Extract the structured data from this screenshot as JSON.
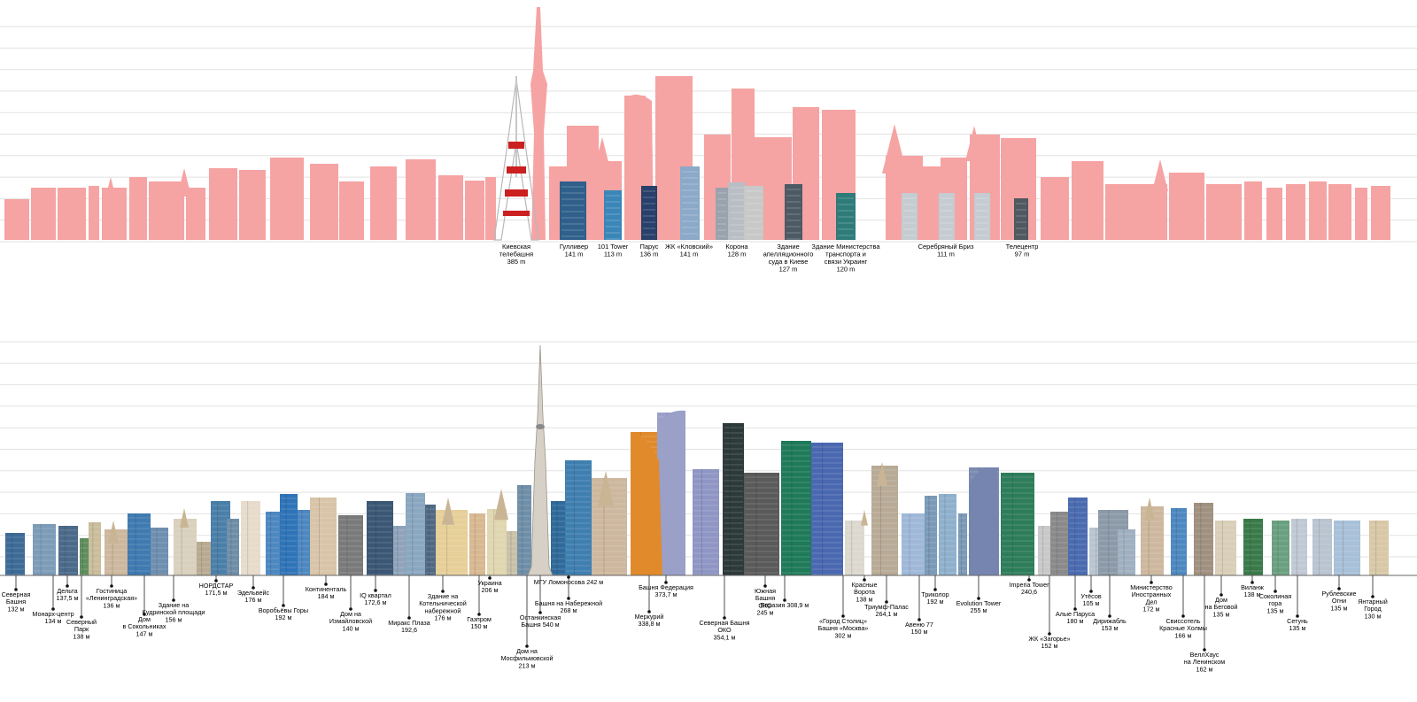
{
  "colors": {
    "silhouette": "#f6a3a3",
    "grid": "#e2e2e2",
    "label": "#000000",
    "tower_red": "#cc1f1f",
    "tower_white": "#f2f2f2",
    "glass_blue": "#2f5f8a",
    "glass_teal": "#2e7b7a",
    "glass_green": "#1f7a5a",
    "stone_beige": "#cdb79e",
    "orange": "#e08a2c",
    "lavender": "#9aa0c8",
    "dark_glass": "#2d3a3a"
  },
  "top_panel": {
    "labels": [
      {
        "name": "Киевская телебашня",
        "lines": [
          "Киевская",
          "телебашня",
          "385 m"
        ]
      },
      {
        "name": "Гулливер",
        "lines": [
          "Гулливер",
          "141 m"
        ]
      },
      {
        "name": "101 Tower",
        "lines": [
          "101 Tower",
          "113 m"
        ]
      },
      {
        "name": "Парус",
        "lines": [
          "Парус",
          "136 m"
        ]
      },
      {
        "name": "ЖК «Кловский»",
        "lines": [
          "ЖК «Кловский»",
          "141 m"
        ]
      },
      {
        "name": "Корона",
        "lines": [
          "Корона",
          "128 m"
        ]
      },
      {
        "name": "Здание апелляционного суда в Киеве",
        "lines": [
          "Здание",
          "апелляционного",
          "суда в Киеве",
          "127 m"
        ]
      },
      {
        "name": "Здание Министерства транспорта и связи Украинг",
        "lines": [
          "Здание Министерства",
          "транспорта и",
          "связи Украинг",
          "120 m"
        ]
      },
      {
        "name": "Серебряный Бриз",
        "lines": [
          "Серебряный Бриз",
          "111 m"
        ]
      },
      {
        "name": "Телецентр",
        "lines": [
          "Телецентр",
          "97 m"
        ]
      }
    ]
  },
  "bottom_panel": {
    "labels": [
      {
        "name": "Северная Башня",
        "lines": [
          "Северная",
          "Башня",
          "132 м"
        ]
      },
      {
        "name": "Монарх-центр",
        "lines": [
          "Монарх-центр",
          "134 м"
        ]
      },
      {
        "name": "Дельта",
        "lines": [
          "Дельта",
          "137,5 м"
        ]
      },
      {
        "name": "Северный Парк",
        "lines": [
          "Северный",
          "Парк",
          "138 м"
        ]
      },
      {
        "name": "Гостиница «Ленинградская»",
        "lines": [
          "Гостиница",
          "«Ленинградская»",
          "136 м"
        ]
      },
      {
        "name": "Дом в Сокольниках",
        "lines": [
          "Дом",
          "в Сокольниках",
          "147 м"
        ]
      },
      {
        "name": "Здание на Кудринской площади",
        "lines": [
          "Здание на",
          "Кудринской площади",
          "156 м"
        ]
      },
      {
        "name": "НОРДСТАР",
        "lines": [
          "НОРДСТАР",
          "171,5 м"
        ]
      },
      {
        "name": "Эдельвейс",
        "lines": [
          "Эдельвейс",
          "176 м"
        ]
      },
      {
        "name": "Воробьёвы Горы",
        "lines": [
          "Воробьёвы Горы",
          "192 м"
        ]
      },
      {
        "name": "Континенталь",
        "lines": [
          "Континенталь",
          "184 м"
        ]
      },
      {
        "name": "Дом на Измайловской",
        "lines": [
          "Дом на",
          "Измайловской",
          "140 м"
        ]
      },
      {
        "name": "IQ квартал",
        "lines": [
          "IQ квартал",
          "172,6 м"
        ]
      },
      {
        "name": "Миракс Плаза",
        "lines": [
          "Миракс Плаза",
          "192,6"
        ]
      },
      {
        "name": "Здание на Котельнической набережной",
        "lines": [
          "Здание на",
          "Котельнической",
          "набережной",
          "176 м"
        ]
      },
      {
        "name": "Газпром",
        "lines": [
          "Газпром",
          "150 м"
        ]
      },
      {
        "name": "Украина",
        "lines": [
          "Украина",
          "206 м"
        ]
      },
      {
        "name": "Дом на Мосфильмовской",
        "lines": [
          "Дом на",
          "Мосфильмовской",
          "213 м"
        ]
      },
      {
        "name": "Останкинская Башня",
        "lines": [
          "Останкинская",
          "Башня 540 м"
        ]
      },
      {
        "name": "МГУ Ломоносова",
        "lines": [
          "МГУ Ломоносова 242 м"
        ]
      },
      {
        "name": "Башня на Набережной",
        "lines": [
          "Башня на Набережной",
          "268 м"
        ]
      },
      {
        "name": "Меркурий",
        "lines": [
          "Меркурий",
          "338,8 м"
        ]
      },
      {
        "name": "Башня Федерация",
        "lines": [
          "Башня Федерация",
          "373,7 м"
        ]
      },
      {
        "name": "Северная Башня ОКО",
        "lines": [
          "Северная Башня",
          "ОКО",
          "354,1 м"
        ]
      },
      {
        "name": "Южная Башня ОКО",
        "lines": [
          "Южная",
          "Башня",
          "ОКО",
          "245 м"
        ]
      },
      {
        "name": "Евразия",
        "lines": [
          "Евразия  308,9 м"
        ]
      },
      {
        "name": "«Город Столиц» Башня «Москва»",
        "lines": [
          "«Город Столиц»",
          "Башня «Москва»",
          "302 м"
        ]
      },
      {
        "name": "Красные Ворота",
        "lines": [
          "Красные",
          "Ворота",
          "138 м"
        ]
      },
      {
        "name": "Триумф-Палас",
        "lines": [
          "Триумф-Палас",
          "264,1 м"
        ]
      },
      {
        "name": "Авеню 77",
        "lines": [
          "Авеню 77",
          "150 м"
        ]
      },
      {
        "name": "Триколор",
        "lines": [
          "Триколор",
          "192 м"
        ]
      },
      {
        "name": "Evolution Tower",
        "lines": [
          "Evolution Tower",
          "255 м"
        ]
      },
      {
        "name": "Imperia Tower",
        "lines": [
          "Imperia Tower",
          "240,6"
        ]
      },
      {
        "name": "ЖК «Загорье»",
        "lines": [
          "ЖК «Загорье»",
          "152 м"
        ]
      },
      {
        "name": "Алые Паруса",
        "lines": [
          "Алые Паруса",
          "180 м"
        ]
      },
      {
        "name": "Утёсов",
        "lines": [
          "Утёсов",
          "105 м"
        ]
      },
      {
        "name": "Дирижабль",
        "lines": [
          "Дирижабль",
          "153 м"
        ]
      },
      {
        "name": "Министерство Иностранных Дел",
        "lines": [
          "Министерство",
          "Иностранных",
          "Дел",
          "172 м"
        ]
      },
      {
        "name": "Свиссотель Красные Холмы",
        "lines": [
          "Свиссотель",
          "Красные Холмы",
          "166 м"
        ]
      },
      {
        "name": "ВеллХаус на Ленинском",
        "lines": [
          "ВеллХаус",
          "на Ленинском",
          "162 м"
        ]
      },
      {
        "name": "Дом на Беговой",
        "lines": [
          "Дом",
          "на Беговой",
          "135 м"
        ]
      },
      {
        "name": "Виланж",
        "lines": [
          "Виланж",
          "138 м"
        ]
      },
      {
        "name": "Соколиная гора",
        "lines": [
          "Соколиная",
          "гора",
          "135 м"
        ]
      },
      {
        "name": "Сетунь",
        "lines": [
          "Сетунь",
          "135 м"
        ]
      },
      {
        "name": "Рублевские Огни",
        "lines": [
          "Рублевские",
          "Огни",
          "135 м"
        ]
      },
      {
        "name": "Янтарный Город",
        "lines": [
          "Янтарный",
          "Город",
          "130 м"
        ]
      }
    ]
  }
}
